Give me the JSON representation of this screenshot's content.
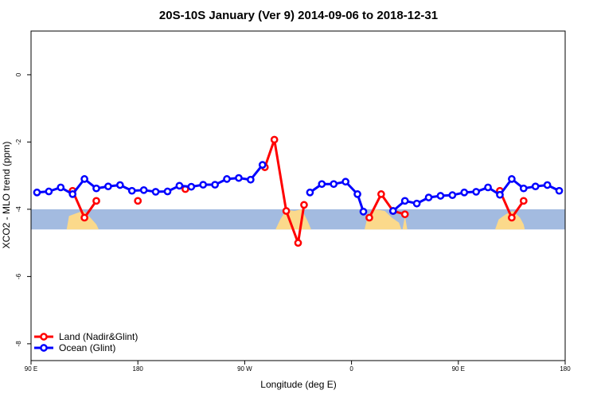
{
  "chart_data": {
    "type": "line",
    "title": "20S-10S January (Ver 9)   2014-09-06 to 2018-12-31",
    "xlabel": "Longitude (deg E)",
    "ylabel": "XCO2 - MLO trend (ppm)",
    "xlim": [
      90,
      540
    ],
    "ylim": [
      -8.5,
      1.3
    ],
    "x_ticks": [
      {
        "value": 90,
        "label": "90 E"
      },
      {
        "value": 180,
        "label": "180"
      },
      {
        "value": 270,
        "label": "90 W"
      },
      {
        "value": 360,
        "label": "0"
      },
      {
        "value": 450,
        "label": "90 E"
      },
      {
        "value": 540,
        "label": "180"
      }
    ],
    "y_ticks": [
      {
        "value": 0,
        "label": "0"
      },
      {
        "value": -2,
        "label": "-2"
      },
      {
        "value": -4,
        "label": "-4"
      },
      {
        "value": -6,
        "label": "-6"
      },
      {
        "value": -8,
        "label": "-8"
      }
    ],
    "series": [
      {
        "name": "Land (Nadir&Glint)",
        "color": "#ff0000",
        "segments": [
          [
            [
              125,
              -3.45
            ],
            [
              135,
              -4.25
            ],
            [
              145,
              -3.75
            ]
          ],
          [
            [
              180,
              -3.75
            ]
          ],
          [
            [
              220,
              -3.4
            ]
          ],
          [
            [
              287,
              -2.75
            ],
            [
              295,
              -1.93
            ],
            [
              305,
              -4.05
            ],
            [
              315,
              -5.0
            ],
            [
              320,
              -3.87
            ]
          ],
          [
            [
              375,
              -4.25
            ],
            [
              385,
              -3.55
            ],
            [
              395,
              -4.05
            ],
            [
              405,
              -4.15
            ]
          ],
          [
            [
              485,
              -3.45
            ],
            [
              495,
              -4.25
            ],
            [
              505,
              -3.75
            ]
          ]
        ]
      },
      {
        "name": "Ocean (Glint)",
        "color": "#0000ff",
        "segments": [
          [
            [
              95,
              -3.5
            ],
            [
              105,
              -3.47
            ],
            [
              115,
              -3.35
            ],
            [
              125,
              -3.55
            ],
            [
              135,
              -3.1
            ],
            [
              145,
              -3.38
            ],
            [
              155,
              -3.32
            ],
            [
              165,
              -3.28
            ],
            [
              175,
              -3.45
            ],
            [
              185,
              -3.43
            ],
            [
              195,
              -3.48
            ],
            [
              205,
              -3.47
            ],
            [
              215,
              -3.3
            ],
            [
              225,
              -3.33
            ],
            [
              235,
              -3.27
            ],
            [
              245,
              -3.27
            ],
            [
              255,
              -3.1
            ],
            [
              265,
              -3.07
            ],
            [
              275,
              -3.12
            ],
            [
              285,
              -2.68
            ]
          ],
          [
            [
              325,
              -3.5
            ],
            [
              335,
              -3.25
            ],
            [
              345,
              -3.25
            ],
            [
              355,
              -3.18
            ],
            [
              365,
              -3.55
            ],
            [
              370,
              -4.07
            ]
          ],
          [
            [
              395,
              -4.05
            ],
            [
              405,
              -3.75
            ],
            [
              415,
              -3.83
            ],
            [
              425,
              -3.65
            ],
            [
              435,
              -3.6
            ],
            [
              445,
              -3.58
            ],
            [
              455,
              -3.5
            ],
            [
              465,
              -3.48
            ],
            [
              475,
              -3.35
            ],
            [
              485,
              -3.57
            ],
            [
              495,
              -3.1
            ],
            [
              505,
              -3.38
            ],
            [
              515,
              -3.32
            ],
            [
              525,
              -3.28
            ],
            [
              535,
              -3.45
            ]
          ]
        ]
      }
    ],
    "legend": {
      "position": "bottom-left"
    },
    "grid": false,
    "background_map": {
      "description_band_ymin": -4.6,
      "description_band_ymax": -4.0,
      "ocean_color": "#a3bbe0",
      "land_color": "#fbd98b"
    }
  }
}
